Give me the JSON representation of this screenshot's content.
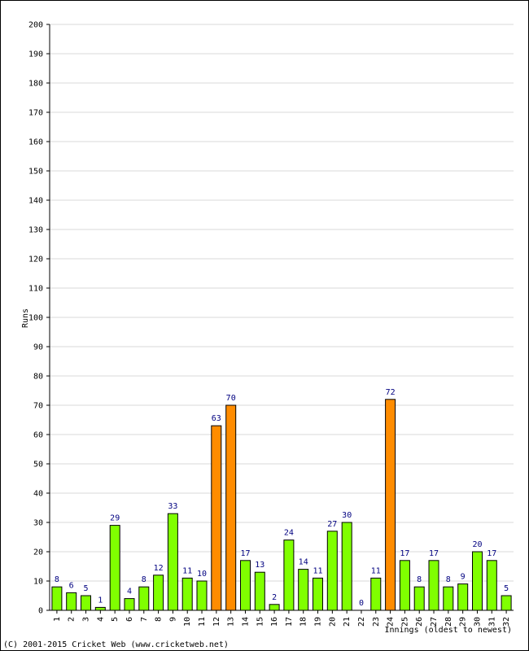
{
  "chart_data": {
    "type": "bar",
    "ylabel": "Runs",
    "xlabel": "Innings (oldest to newest)",
    "ylim": [
      0,
      200
    ],
    "ytick_step": 10,
    "grid": true,
    "categories": [
      "1",
      "2",
      "3",
      "4",
      "5",
      "6",
      "7",
      "8",
      "9",
      "10",
      "11",
      "12",
      "13",
      "14",
      "15",
      "16",
      "17",
      "18",
      "19",
      "20",
      "21",
      "22",
      "23",
      "24",
      "25",
      "26",
      "27",
      "28",
      "29",
      "30",
      "31",
      "32"
    ],
    "values": [
      8,
      6,
      5,
      1,
      29,
      4,
      8,
      12,
      33,
      11,
      10,
      63,
      70,
      17,
      13,
      2,
      24,
      14,
      11,
      27,
      30,
      0,
      11,
      72,
      17,
      8,
      17,
      8,
      9,
      20,
      17,
      5
    ],
    "value_labels": [
      "8",
      "6",
      "5",
      "1",
      "29",
      "4",
      "8",
      "12",
      "33",
      "11",
      "10",
      "63",
      "70",
      "17",
      "13",
      "2",
      "24",
      "14",
      "11",
      "27",
      "30",
      "0",
      "11",
      "72",
      "17",
      "8",
      "17",
      "8",
      "9",
      "20",
      "17",
      "5"
    ],
    "highlight_threshold": 50,
    "colors": {
      "bar_normal": "#80ff00",
      "bar_highlight": "#ff8c00",
      "bar_stroke": "#000000",
      "grid": "#d8d8d8",
      "value_label": "#000080"
    }
  },
  "footer": {
    "copyright": "(C) 2001-2015 Cricket Web (www.cricketweb.net)"
  }
}
